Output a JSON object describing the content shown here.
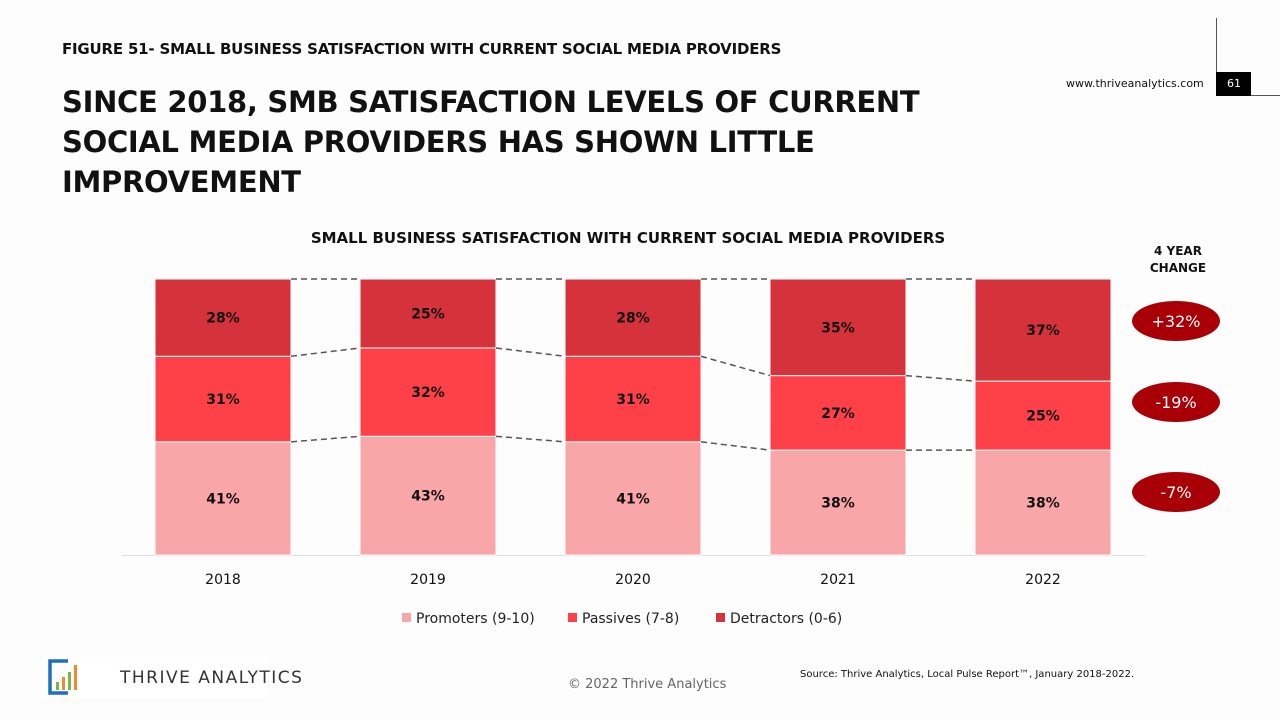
{
  "figure_label": "FIGURE 51- SMALL BUSINESS SATISFACTION WITH CURRENT SOCIAL MEDIA PROVIDERS",
  "headline": "SINCE 2018, SMB SATISFACTION LEVELS OF CURRENT SOCIAL MEDIA PROVIDERS HAS SHOWN LITTLE IMPROVEMENT",
  "website": "www.thriveanalytics.com",
  "page_number": "61",
  "logo_text": "Thrive Analytics",
  "copyright": "© 2022 Thrive Analytics",
  "source": "Source: Thrive Analytics, Local Pulse Report™, January 2018-2022.",
  "chart_data": {
    "type": "bar",
    "stacked": true,
    "title": "SMALL BUSINESS SATISFACTION WITH CURRENT SOCIAL MEDIA PROVIDERS",
    "categories": [
      "2018",
      "2019",
      "2020",
      "2021",
      "2022"
    ],
    "series": [
      {
        "name": "Promoters (9-10)",
        "color": "#f9a6a8",
        "values": [
          41,
          43,
          41,
          38,
          38
        ]
      },
      {
        "name": "Passives (7-8)",
        "color": "#fe4148",
        "values": [
          31,
          32,
          31,
          27,
          25
        ]
      },
      {
        "name": "Detractors (0-6)",
        "color": "#d6323b",
        "values": [
          28,
          25,
          28,
          35,
          37
        ]
      }
    ],
    "ylim": [
      0,
      100
    ],
    "legend": "bottom",
    "change_header": "4 YEAR CHANGE",
    "change_color": "#a80006",
    "four_year_change": {
      "Detractors (0-6)": "+32%",
      "Passives (7-8)": "-19%",
      "Promoters (9-10)": "-7%"
    }
  }
}
